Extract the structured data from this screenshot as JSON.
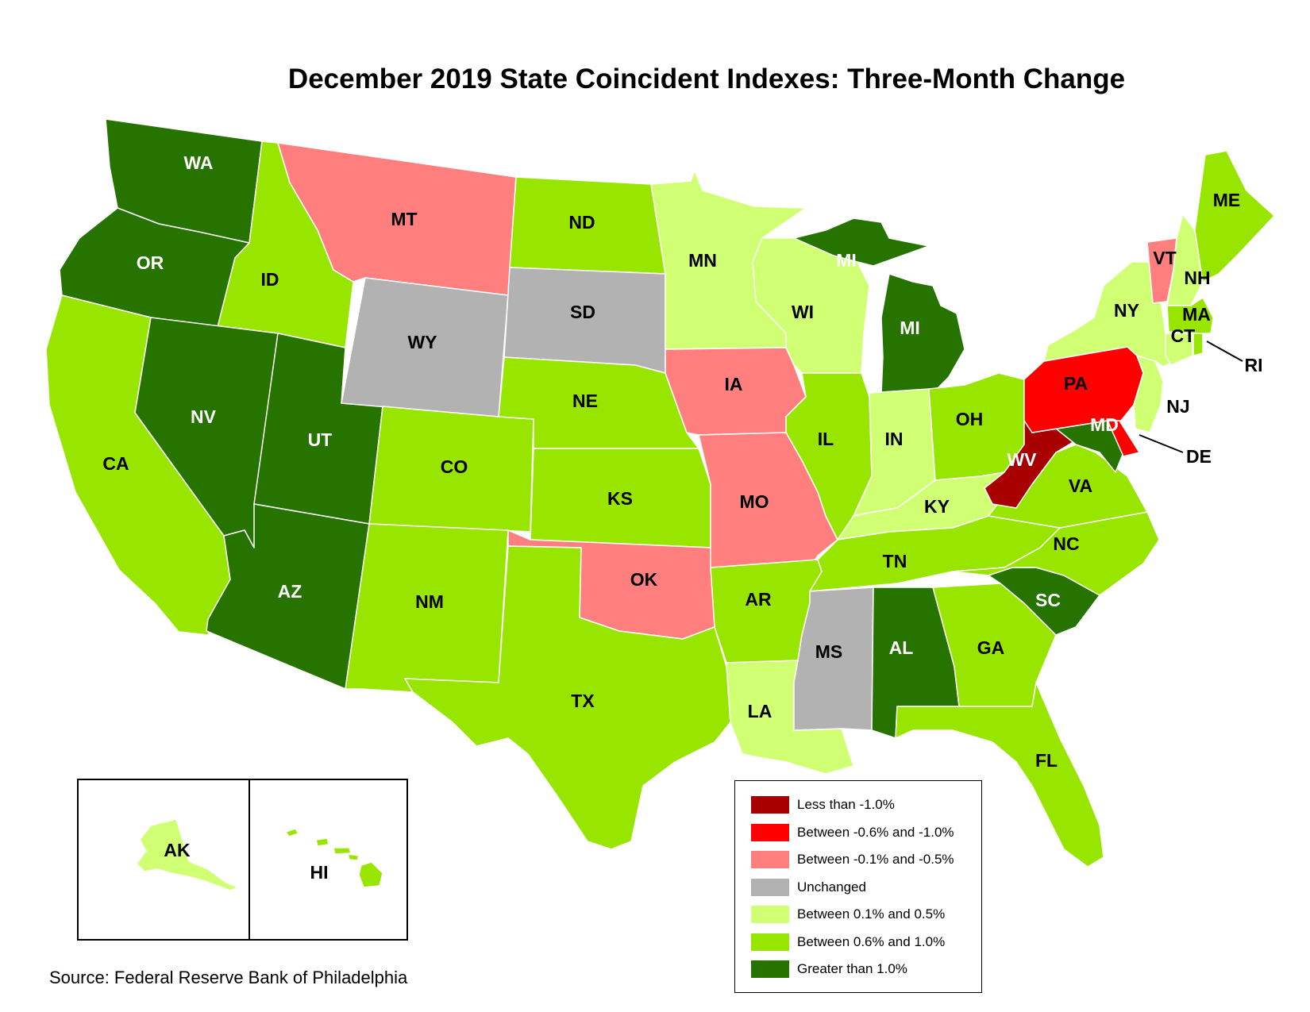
{
  "title": "December 2019 State Coincident Indexes: Three-Month Change",
  "source": "Source: Federal Reserve Bank of Philadelphia",
  "legend": [
    {
      "key": "lt_-1",
      "label": "Less than -1.0%",
      "color": "#a80000"
    },
    {
      "key": "-0.6_-1",
      "label": "Between -0.6% and -1.0%",
      "color": "#ff0000"
    },
    {
      "key": "-0.1_-0.5",
      "label": "Between -0.1% and -0.5%",
      "color": "#ff7f7f"
    },
    {
      "key": "unch",
      "label": "Unchanged",
      "color": "#b2b2b2"
    },
    {
      "key": "0.1_0.5",
      "label": "Between 0.1% and 0.5%",
      "color": "#d1ff73"
    },
    {
      "key": "0.6_1",
      "label": "Between 0.6% and 1.0%",
      "color": "#98e600"
    },
    {
      "key": "gt_1",
      "label": "Greater than 1.0%",
      "color": "#267300"
    }
  ],
  "states": [
    {
      "abbr": "WA",
      "bin": "gt_1"
    },
    {
      "abbr": "OR",
      "bin": "gt_1"
    },
    {
      "abbr": "CA",
      "bin": "0.6_1"
    },
    {
      "abbr": "ID",
      "bin": "0.6_1"
    },
    {
      "abbr": "NV",
      "bin": "gt_1"
    },
    {
      "abbr": "UT",
      "bin": "gt_1"
    },
    {
      "abbr": "AZ",
      "bin": "gt_1"
    },
    {
      "abbr": "MT",
      "bin": "-0.1_-0.5"
    },
    {
      "abbr": "WY",
      "bin": "unch"
    },
    {
      "abbr": "CO",
      "bin": "0.6_1"
    },
    {
      "abbr": "NM",
      "bin": "0.6_1"
    },
    {
      "abbr": "ND",
      "bin": "0.6_1"
    },
    {
      "abbr": "SD",
      "bin": "unch"
    },
    {
      "abbr": "NE",
      "bin": "0.6_1"
    },
    {
      "abbr": "KS",
      "bin": "0.6_1"
    },
    {
      "abbr": "OK",
      "bin": "-0.1_-0.5"
    },
    {
      "abbr": "TX",
      "bin": "0.6_1"
    },
    {
      "abbr": "MN",
      "bin": "0.1_0.5"
    },
    {
      "abbr": "IA",
      "bin": "-0.1_-0.5"
    },
    {
      "abbr": "MO",
      "bin": "-0.1_-0.5"
    },
    {
      "abbr": "AR",
      "bin": "0.6_1"
    },
    {
      "abbr": "LA",
      "bin": "0.1_0.5"
    },
    {
      "abbr": "WI",
      "bin": "0.1_0.5"
    },
    {
      "abbr": "IL",
      "bin": "0.6_1"
    },
    {
      "abbr": "MI",
      "bin": "gt_1"
    },
    {
      "abbr": "IN",
      "bin": "0.1_0.5"
    },
    {
      "abbr": "OH",
      "bin": "0.6_1"
    },
    {
      "abbr": "KY",
      "bin": "0.1_0.5"
    },
    {
      "abbr": "TN",
      "bin": "0.6_1"
    },
    {
      "abbr": "MS",
      "bin": "unch"
    },
    {
      "abbr": "AL",
      "bin": "gt_1"
    },
    {
      "abbr": "GA",
      "bin": "0.6_1"
    },
    {
      "abbr": "FL",
      "bin": "0.6_1"
    },
    {
      "abbr": "SC",
      "bin": "gt_1"
    },
    {
      "abbr": "NC",
      "bin": "0.6_1"
    },
    {
      "abbr": "VA",
      "bin": "0.6_1"
    },
    {
      "abbr": "WV",
      "bin": "lt_-1"
    },
    {
      "abbr": "MD",
      "bin": "gt_1"
    },
    {
      "abbr": "DE",
      "bin": "-0.6_-1"
    },
    {
      "abbr": "PA",
      "bin": "-0.6_-1"
    },
    {
      "abbr": "NJ",
      "bin": "0.1_0.5"
    },
    {
      "abbr": "NY",
      "bin": "0.1_0.5"
    },
    {
      "abbr": "CT",
      "bin": "0.1_0.5"
    },
    {
      "abbr": "RI",
      "bin": "0.6_1"
    },
    {
      "abbr": "MA",
      "bin": "0.6_1"
    },
    {
      "abbr": "VT",
      "bin": "-0.1_-0.5"
    },
    {
      "abbr": "NH",
      "bin": "0.1_0.5"
    },
    {
      "abbr": "ME",
      "bin": "0.6_1"
    },
    {
      "abbr": "AK",
      "bin": "0.1_0.5"
    },
    {
      "abbr": "HI",
      "bin": "0.6_1"
    }
  ]
}
